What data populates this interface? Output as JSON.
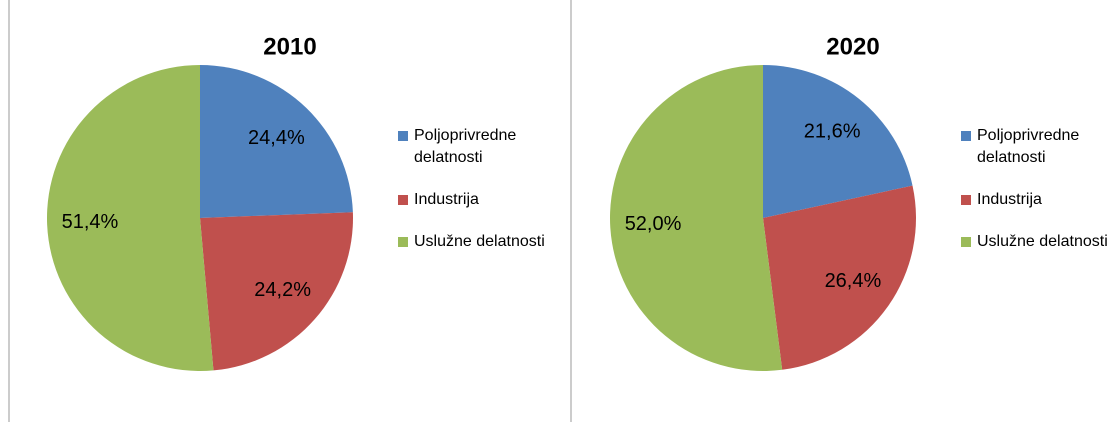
{
  "chart_data": [
    {
      "type": "pie",
      "title": "2010",
      "categories": [
        "Poljoprivredne delatnosti",
        "Industrija",
        "Uslužne delatnosti"
      ],
      "values": [
        24.4,
        24.2,
        51.4
      ],
      "value_labels": [
        "24,4%",
        "24,2%",
        "51,4%"
      ],
      "colors": [
        "#4f81bd",
        "#c0504d",
        "#9bbb59"
      ],
      "legend": "right"
    },
    {
      "type": "pie",
      "title": "2020",
      "categories": [
        "Poljoprivredne delatnosti",
        "Industrija",
        "Uslužne delatnosti"
      ],
      "values": [
        21.6,
        26.4,
        52.0
      ],
      "value_labels": [
        "21,6%",
        "26,4%",
        "52,0%"
      ],
      "colors": [
        "#4f81bd",
        "#c0504d",
        "#9bbb59"
      ],
      "legend": "right"
    }
  ]
}
